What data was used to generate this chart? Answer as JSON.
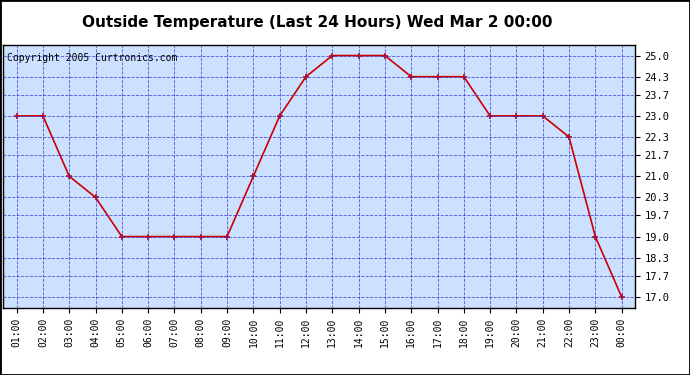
{
  "title": "Outside Temperature (Last 24 Hours) Wed Mar 2 00:00",
  "copyright": "Copyright 2005 Curtronics.com",
  "x_labels": [
    "01:00",
    "02:00",
    "03:00",
    "04:00",
    "05:00",
    "06:00",
    "07:00",
    "08:00",
    "09:00",
    "10:00",
    "11:00",
    "12:00",
    "13:00",
    "14:00",
    "15:00",
    "16:00",
    "17:00",
    "18:00",
    "19:00",
    "20:00",
    "21:00",
    "22:00",
    "23:00",
    "00:00"
  ],
  "y_values": [
    23.0,
    23.0,
    21.0,
    20.3,
    19.0,
    19.0,
    19.0,
    19.0,
    19.0,
    21.0,
    23.0,
    24.3,
    25.0,
    25.0,
    25.0,
    24.3,
    24.3,
    24.3,
    23.0,
    23.0,
    23.0,
    22.3,
    19.0,
    17.0
  ],
  "y_ticks": [
    17.0,
    17.7,
    18.3,
    19.0,
    19.7,
    20.3,
    21.0,
    21.7,
    22.3,
    23.0,
    23.7,
    24.3,
    25.0
  ],
  "ylim": [
    16.65,
    25.35
  ],
  "xlim": [
    -0.5,
    23.5
  ],
  "line_color": "#cc0000",
  "marker_color": "#cc0000",
  "plot_bg_color": "#cce0ff",
  "outer_bg_color": "#ffffff",
  "grid_color": "#3333cc",
  "title_fontsize": 11,
  "copyright_fontsize": 7,
  "tick_fontsize": 7,
  "ytick_fontsize": 7.5
}
